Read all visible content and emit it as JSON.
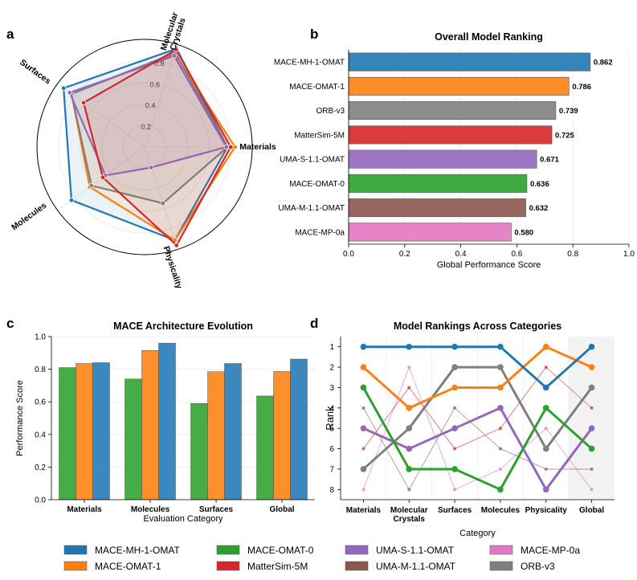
{
  "panel_letters": [
    "a",
    "b",
    "c",
    "d"
  ],
  "legend": [
    {
      "name": "MACE-MH-1-OMAT",
      "color": "#1f77b4"
    },
    {
      "name": "MACE-OMAT-1",
      "color": "#ff7f0e"
    },
    {
      "name": "MACE-OMAT-0",
      "color": "#2ca02c"
    },
    {
      "name": "MatterSim-5M",
      "color": "#d62728"
    },
    {
      "name": "UMA-S-1.1-OMAT",
      "color": "#9467bd"
    },
    {
      "name": "UMA-M-1.1-OMAT",
      "color": "#8c564b"
    },
    {
      "name": "MACE-MP-0a",
      "color": "#e377c2"
    },
    {
      "name": "ORB-v3",
      "color": "#7f7f7f"
    }
  ],
  "chart_data": [
    {
      "id": "a",
      "type": "radar",
      "axes": [
        "Materials",
        "Physicality",
        "Molecules",
        "Surfaces",
        "Molecular\nCrystals"
      ],
      "rticks": [
        "0.2",
        "0.4",
        "0.6",
        "0.8"
      ],
      "rlim": [
        0,
        1
      ],
      "grid": true,
      "series": [
        {
          "name": "MACE-MH-1-OMAT",
          "color": "#1f77b4",
          "values": [
            0.77,
            0.91,
            0.84,
            0.93,
            0.96
          ]
        },
        {
          "name": "MACE-OMAT-1",
          "color": "#ff7f0e",
          "values": [
            0.84,
            0.91,
            0.63,
            0.84,
            0.91
          ]
        },
        {
          "name": "ORB-v3",
          "color": "#7f7f7f",
          "values": [
            0.77,
            0.55,
            0.61,
            0.84,
            0.92
          ]
        },
        {
          "name": "UMA-S-1.1-OMAT",
          "color": "#9467bd",
          "values": [
            0.76,
            0.2,
            0.45,
            0.86,
            0.89
          ]
        },
        {
          "name": "MatterSim-5M",
          "color": "#d62728",
          "values": [
            0.8,
            0.96,
            0.48,
            0.7,
            0.95
          ]
        }
      ]
    },
    {
      "id": "b",
      "type": "bar",
      "orientation": "horizontal",
      "title": "Overall Model Ranking",
      "xlabel": "Global Performance Score",
      "xlim": [
        0,
        1.0
      ],
      "xticks": [
        "0.0",
        "0.2",
        "0.4",
        "0.6",
        "0.8",
        "1.0"
      ],
      "categories": [
        "MACE-MH-1-OMAT",
        "MACE-OMAT-1",
        "ORB-v3",
        "MatterSim-5M",
        "UMA-S-1.1-OMAT",
        "MACE-OMAT-0",
        "UMA-M-1.1-OMAT",
        "MACE-MP-0a"
      ],
      "values": [
        0.862,
        0.786,
        0.739,
        0.725,
        0.671,
        0.636,
        0.632,
        0.58
      ],
      "value_labels": [
        "0.862",
        "0.786",
        "0.739",
        "0.725",
        "0.671",
        "0.636",
        "0.632",
        "0.580"
      ],
      "colors": [
        "#1f77b4",
        "#ff7f0e",
        "#7f7f7f",
        "#d62728",
        "#9467bd",
        "#2ca02c",
        "#8c564b",
        "#e377c2"
      ]
    },
    {
      "id": "c",
      "type": "bar",
      "title": "MACE Architecture Evolution",
      "xlabel": "Evaluation Category",
      "ylabel": "Performance Score",
      "ylim": [
        0,
        1.0
      ],
      "yticks": [
        "0.0",
        "0.2",
        "0.4",
        "0.6",
        "0.8",
        "1.0"
      ],
      "categories": [
        "Materials",
        "Molecules",
        "Surfaces",
        "Global"
      ],
      "series": [
        {
          "name": "MACE-OMAT-0",
          "color": "#2ca02c",
          "values": [
            0.81,
            0.74,
            0.59,
            0.636
          ]
        },
        {
          "name": "MACE-OMAT-1",
          "color": "#ff7f0e",
          "values": [
            0.835,
            0.915,
            0.785,
            0.786
          ]
        },
        {
          "name": "MACE-MH-1-OMAT",
          "color": "#1f77b4",
          "values": [
            0.84,
            0.96,
            0.835,
            0.862
          ]
        }
      ]
    },
    {
      "id": "d",
      "type": "line",
      "title": "Model Rankings Across Categories",
      "xlabel": "Category",
      "ylabel": "Rank",
      "categories": [
        "Materials",
        "Molecular\nCrystals",
        "Surfaces",
        "Molecules",
        "Physicality",
        "Global"
      ],
      "yticks": [
        "1",
        "2",
        "3",
        "4",
        "5",
        "6",
        "7",
        "8"
      ],
      "ylim": [
        8.5,
        0.5
      ],
      "series": [
        {
          "name": "MACE-MP-0a",
          "color": "#e377c2",
          "thin": true,
          "values": [
            8,
            2,
            8,
            7,
            5,
            8
          ]
        },
        {
          "name": "UMA-M-1.1-OMAT",
          "color": "#8c564b",
          "thin": true,
          "values": [
            4,
            8,
            4,
            6,
            7,
            7
          ]
        },
        {
          "name": "MatterSim-5M",
          "color": "#d62728",
          "thin": true,
          "values": [
            6,
            3,
            6,
            5,
            2,
            4
          ]
        },
        {
          "name": "ORB-v3",
          "color": "#7f7f7f",
          "thin": false,
          "values": [
            7,
            5,
            2,
            2,
            6,
            3
          ]
        },
        {
          "name": "UMA-S-1.1-OMAT",
          "color": "#9467bd",
          "thin": false,
          "values": [
            5,
            6,
            5,
            4,
            8,
            5
          ]
        },
        {
          "name": "MACE-OMAT-0",
          "color": "#2ca02c",
          "thin": false,
          "values": [
            3,
            7,
            7,
            8,
            4,
            6
          ]
        },
        {
          "name": "MACE-OMAT-1",
          "color": "#ff7f0e",
          "thin": false,
          "values": [
            2,
            4,
            3,
            3,
            1,
            2
          ]
        },
        {
          "name": "MACE-MH-1-OMAT",
          "color": "#1f77b4",
          "thin": false,
          "values": [
            1,
            1,
            1,
            1,
            3,
            1
          ]
        }
      ]
    }
  ]
}
